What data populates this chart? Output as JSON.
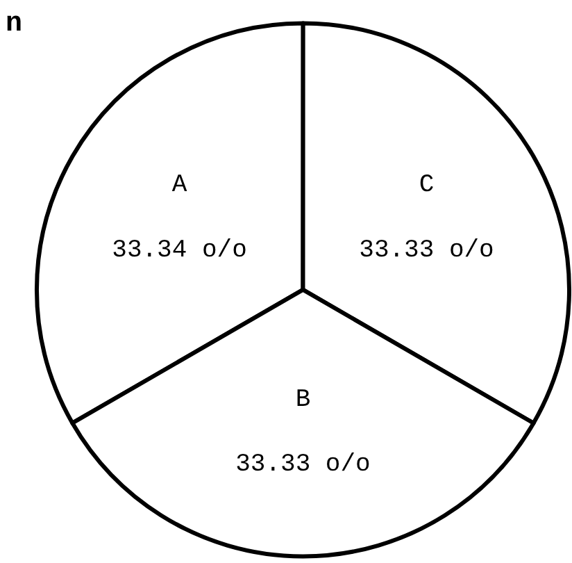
{
  "chart_data": {
    "type": "pie",
    "categories": [
      "A",
      "C",
      "B"
    ],
    "values": [
      33.34,
      33.33,
      33.33
    ],
    "value_labels": [
      "33.34 o/o",
      "33.33 o/o",
      "33.33 o/o"
    ],
    "colors": [
      "#ffffff",
      "#ffffff",
      "#ffffff"
    ],
    "annotations": [
      "n"
    ],
    "legend": false
  }
}
